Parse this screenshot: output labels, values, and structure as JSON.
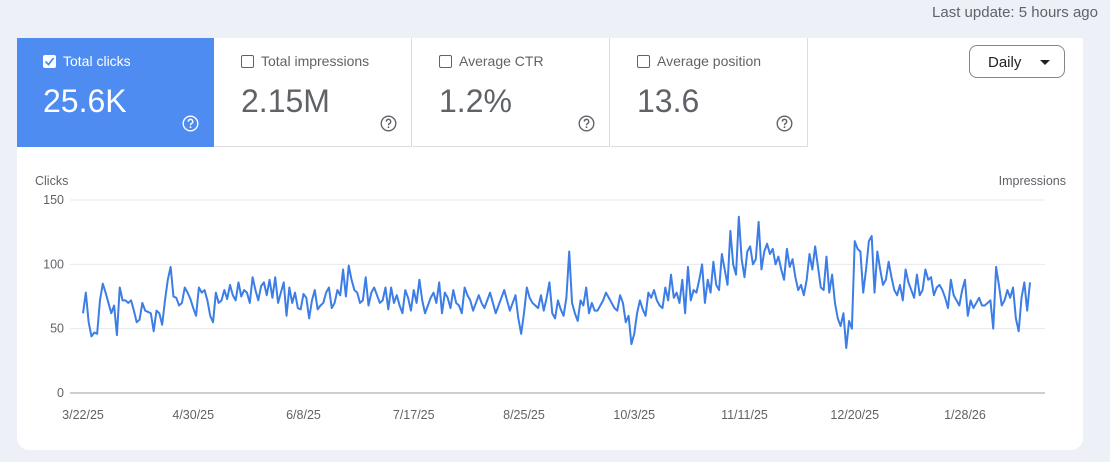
{
  "last_update": "Last update: 5 hours ago",
  "metrics": [
    {
      "label": "Total clicks",
      "value": "25.6K",
      "selected": true
    },
    {
      "label": "Total impressions",
      "value": "2.15M",
      "selected": false
    },
    {
      "label": "Average CTR",
      "value": "1.2%",
      "selected": false
    },
    {
      "label": "Average position",
      "value": "13.6",
      "selected": false
    }
  ],
  "period_selector": "Daily",
  "chart_data": {
    "type": "line",
    "y_label": "Clicks",
    "y2_label": "Impressions",
    "color": "#3c7de6",
    "ylim": [
      0,
      150
    ],
    "yticks": [
      0,
      50,
      100,
      150
    ],
    "grid": true,
    "categories": [
      "3/22/25",
      null,
      null,
      null,
      null,
      null,
      null,
      null,
      null,
      null,
      null,
      null,
      null,
      null,
      null,
      null,
      null,
      null,
      null,
      null,
      null,
      null,
      null,
      null,
      null,
      null,
      null,
      null,
      null,
      null,
      null,
      null,
      null,
      null,
      null,
      null,
      null,
      null,
      null,
      "4/30/25",
      null,
      null,
      null,
      null,
      null,
      null,
      null,
      null,
      null,
      null,
      null,
      null,
      null,
      null,
      null,
      null,
      null,
      null,
      null,
      null,
      null,
      null,
      null,
      null,
      null,
      null,
      null,
      null,
      null,
      null,
      null,
      null,
      null,
      null,
      null,
      null,
      null,
      null,
      "6/8/25",
      null,
      null,
      null,
      null,
      null,
      null,
      null,
      null,
      null,
      null,
      null,
      null,
      null,
      null,
      null,
      null,
      null,
      null,
      null,
      null,
      null,
      null,
      null,
      null,
      null,
      null,
      null,
      null,
      null,
      null,
      null,
      null,
      null,
      null,
      null,
      null,
      null,
      null,
      "7/17/25",
      null,
      null,
      null,
      null,
      null,
      null,
      null,
      null,
      null,
      null,
      null,
      null,
      null,
      null,
      null,
      null,
      null,
      null,
      null,
      null,
      null,
      null,
      null,
      null,
      null,
      null,
      null,
      null,
      null,
      null,
      null,
      null,
      null,
      null,
      null,
      null,
      null,
      null,
      "8/25/25",
      null,
      null,
      null,
      null,
      null,
      null,
      null,
      null,
      null,
      null,
      null,
      null,
      null,
      null,
      null,
      null,
      null,
      null,
      null,
      null,
      null,
      null,
      null,
      null,
      null,
      null,
      null,
      null,
      null,
      null,
      null,
      null,
      null,
      null,
      null,
      null,
      null,
      null,
      "10/3/25",
      null,
      null,
      null,
      null,
      null,
      null,
      null,
      null,
      null,
      null,
      null,
      null,
      null,
      null,
      null,
      null,
      null,
      null,
      null,
      null,
      null,
      null,
      null,
      null,
      null,
      null,
      null,
      null,
      null,
      null,
      null,
      null,
      null,
      null,
      null,
      null,
      null,
      null,
      "11/11/25",
      null,
      null,
      null,
      null,
      null,
      null,
      null,
      null,
      null,
      null,
      null,
      null,
      null,
      null,
      null,
      null,
      null,
      null,
      null,
      null,
      null,
      null,
      null,
      null,
      null,
      null,
      null,
      null,
      null,
      null,
      null,
      null,
      null,
      null,
      null,
      null,
      null,
      null,
      "12/20/25",
      null,
      null,
      null,
      null,
      null,
      null,
      null,
      null,
      null,
      null,
      null,
      null,
      null,
      null,
      null,
      null,
      null,
      null,
      null,
      null,
      null,
      null,
      null,
      null,
      null,
      null,
      null,
      null,
      null,
      null,
      null,
      null,
      null,
      null,
      null,
      null,
      null,
      null,
      "1/28/26",
      null,
      null,
      null,
      null,
      null,
      null,
      null,
      null,
      null,
      null,
      null,
      null,
      null,
      null,
      null,
      null,
      null,
      null,
      null,
      null,
      null,
      null,
      null
    ],
    "values": [
      62,
      78,
      55,
      44,
      47,
      46,
      72,
      85,
      78,
      70,
      62,
      68,
      45,
      82,
      72,
      72,
      70,
      72,
      64,
      55,
      57,
      70,
      64,
      63,
      62,
      48,
      64,
      62,
      53,
      72,
      88,
      98,
      75,
      74,
      68,
      70,
      82,
      78,
      73,
      66,
      60,
      82,
      78,
      80,
      72,
      60,
      55,
      78,
      70,
      72,
      80,
      73,
      84,
      76,
      72,
      86,
      75,
      80,
      78,
      70,
      90,
      80,
      72,
      83,
      86,
      76,
      88,
      74,
      90,
      70,
      78,
      86,
      60,
      82,
      70,
      78,
      66,
      65,
      77,
      74,
      58,
      72,
      80,
      65,
      68,
      70,
      78,
      82,
      66,
      70,
      80,
      76,
      96,
      75,
      99,
      88,
      80,
      78,
      70,
      72,
      90,
      68,
      78,
      82,
      76,
      70,
      72,
      82,
      65,
      82,
      70,
      76,
      68,
      62,
      80,
      74,
      64,
      80,
      70,
      88,
      72,
      62,
      68,
      74,
      78,
      70,
      86,
      62,
      78,
      74,
      66,
      80,
      70,
      68,
      62,
      82,
      76,
      72,
      64,
      70,
      76,
      70,
      66,
      72,
      78,
      70,
      62,
      68,
      74,
      80,
      72,
      64,
      70,
      76,
      58,
      46,
      62,
      82,
      74,
      70,
      68,
      66,
      76,
      64,
      74,
      86,
      62,
      58,
      72,
      65,
      60,
      74,
      110,
      70,
      62,
      56,
      72,
      68,
      82,
      62,
      70,
      64,
      64,
      68,
      72,
      78,
      74,
      70,
      66,
      64,
      76,
      70,
      55,
      60,
      38,
      46,
      62,
      72,
      65,
      60,
      78,
      74,
      80,
      72,
      68,
      66,
      82,
      72,
      92,
      74,
      78,
      70,
      88,
      62,
      98,
      72,
      80,
      78,
      88,
      100,
      70,
      88,
      78,
      102,
      84,
      80,
      108,
      96,
      84,
      126,
      100,
      92,
      137,
      104,
      90,
      110,
      114,
      100,
      104,
      133,
      96,
      110,
      116,
      108,
      112,
      100,
      106,
      96,
      88,
      112,
      98,
      104,
      90,
      80,
      84,
      76,
      88,
      108,
      96,
      114,
      98,
      82,
      80,
      106,
      78,
      92,
      70,
      58,
      52,
      62,
      35,
      56,
      50,
      118,
      112,
      110,
      78,
      96,
      118,
      122,
      78,
      110,
      96,
      84,
      88,
      102,
      90,
      80,
      76,
      84,
      72,
      96,
      86,
      80,
      74,
      92,
      76,
      80,
      96,
      88,
      90,
      76,
      82,
      84,
      80,
      74,
      66,
      88,
      76,
      72,
      68,
      80,
      88,
      60,
      72,
      66,
      70,
      74,
      68,
      68,
      70,
      72,
      50,
      98,
      84,
      68,
      72,
      80,
      74,
      82,
      58,
      48,
      74,
      86,
      64,
      86
    ]
  }
}
